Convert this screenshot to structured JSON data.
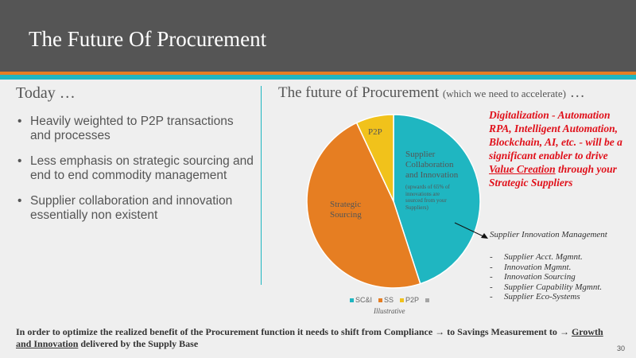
{
  "title": "The Future Of Procurement",
  "left": {
    "heading": "Today …",
    "bullet_glyph": "•",
    "bullets": [
      "Heavily weighted to P2P transactions and processes",
      "Less emphasis on strategic sourcing and end to end commodity management",
      "Supplier collaboration and innovation essentially non existent"
    ]
  },
  "right": {
    "heading": "The future of Procurement",
    "heading_sub": "(which we need to accelerate)",
    "heading_ellipsis": " …"
  },
  "chart_data": {
    "type": "pie",
    "title": "",
    "slices": [
      {
        "key": "SC&I",
        "value": 45,
        "color": "#1fb6c1"
      },
      {
        "key": "SS",
        "value": 48,
        "color": "#e67e22"
      },
      {
        "key": "P2P",
        "value": 7,
        "color": "#f1c21b"
      }
    ],
    "slice_labels": {
      "p2p": "P2P",
      "sci_line1": "Supplier",
      "sci_line2": "Collaboration",
      "sci_line3": "and Innovation",
      "sci_small1": "(upwards of 65% of",
      "sci_small2": "innovations are",
      "sci_small3": "sourced from your",
      "sci_small4": "Suppliers)",
      "ss_line1": "Strategic",
      "ss_line2": "Sourcing"
    },
    "legend": [
      {
        "label": "SC&I",
        "color": "#1fb6c1"
      },
      {
        "label": "SS",
        "color": "#e67e22"
      },
      {
        "label": "P2P",
        "color": "#f1c21b"
      },
      {
        "label": "",
        "color": "#a5a5a5"
      }
    ],
    "legend_position": "bottom",
    "caption": "Illustrative"
  },
  "note": {
    "line1": "Digitalization - Automation RPA, Intelligent Automation, Blockchain, AI, etc. - will be a significant enabler to drive ",
    "underlined": "Value Creation",
    "line2": " through your Strategic Suppliers"
  },
  "innovation": {
    "heading": "Supplier Innovation Management",
    "dash": "-",
    "items": [
      "Supplier Acct. Mgmnt.",
      "Innovation Mgmnt.",
      "Innovation Sourcing",
      "Supplier Capability Mgmnt.",
      "Supplier Eco-Systems"
    ]
  },
  "footer": {
    "part1": "In order to optimize the realized benefit of the Procurement function it needs to shift from Compliance ",
    "arrow1": "→",
    "part2": " to Savings Measurement to ",
    "arrow2": "→",
    "space": " ",
    "underlined": "Growth and Innovation",
    "part3": " delivered by the Supply Base"
  },
  "page_number": "30",
  "colors": {
    "header": "#555555",
    "teal": "#1fb6c1",
    "orange": "#e67e22",
    "yellow": "#f1c21b",
    "red": "#e0101a"
  }
}
